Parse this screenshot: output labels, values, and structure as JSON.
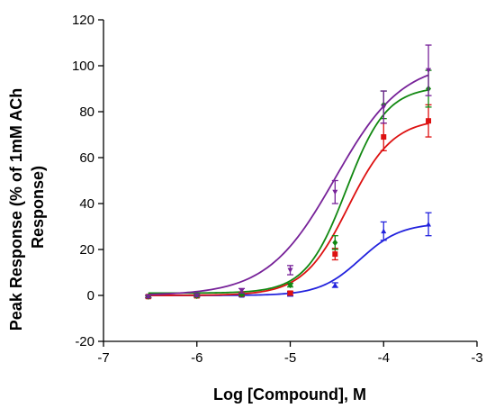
{
  "chart_data": {
    "type": "scatter",
    "title": "",
    "xlabel": "Log [Compound], M",
    "ylabel_lines": [
      "Peak Response (% of  1mM ACh",
      "Response)"
    ],
    "xlim": [
      -7,
      -3
    ],
    "ylim": [
      -20,
      120
    ],
    "x_ticks": [
      -7,
      -6,
      -5,
      -4,
      -3
    ],
    "x_tick_labels": [
      "-7",
      "-6",
      "-5",
      "-4",
      "-3"
    ],
    "y_ticks": [
      -20,
      0,
      20,
      40,
      60,
      80,
      100,
      120
    ],
    "y_tick_labels": [
      "-20",
      "0",
      "20",
      "40",
      "60",
      "80",
      "100",
      "120"
    ],
    "grid": false,
    "legend": "none",
    "series": [
      {
        "color": "#2222dd",
        "marker": "triangle-up",
        "x": [
          -6.52,
          -6.0,
          -5.52,
          -5.0,
          -4.52,
          -4.0,
          -3.52
        ],
        "y": [
          -0.5,
          -0.2,
          0.0,
          0.5,
          4.5,
          28,
          31
        ],
        "err": [
          0.5,
          0.5,
          0.5,
          0.8,
          1.0,
          4,
          5
        ],
        "fit": {
          "bottom": 0.0,
          "top": 31.5,
          "logEC50": -4.25,
          "hill": 2.0
        }
      },
      {
        "color": "#dd1111",
        "marker": "square",
        "x": [
          -6.52,
          -6.0,
          -5.52,
          -5.0,
          -4.52,
          -4.0,
          -3.52
        ],
        "y": [
          -0.5,
          -0.2,
          0.5,
          1.0,
          18,
          69,
          76
        ],
        "err": [
          0.5,
          0.5,
          0.5,
          0.8,
          2.5,
          6,
          7
        ],
        "fit": {
          "bottom": 0.0,
          "top": 77.0,
          "logEC50": -4.38,
          "hill": 1.8
        }
      },
      {
        "color": "#118811",
        "marker": "diamond",
        "x": [
          -6.52,
          -6.0,
          -5.52,
          -5.0,
          -4.52,
          -4.0,
          -3.52
        ],
        "y": [
          -0.5,
          -0.2,
          0.5,
          4.5,
          23,
          83,
          90
        ],
        "err": [
          0.5,
          0.5,
          0.5,
          0.8,
          3,
          6,
          8
        ],
        "fit": {
          "bottom": 1.0,
          "top": 91.0,
          "logEC50": -4.4,
          "hill": 2.0
        }
      },
      {
        "color": "#772299",
        "marker": "triangle-down",
        "x": [
          -6.52,
          -6.0,
          -5.52,
          -5.0,
          -4.52,
          -4.0,
          -3.52
        ],
        "y": [
          -0.5,
          0.0,
          2.0,
          11,
          45,
          82,
          98
        ],
        "err": [
          0.5,
          0.5,
          1.0,
          2,
          5,
          7,
          11
        ],
        "fit": {
          "bottom": 0.0,
          "top": 102.0,
          "logEC50": -4.52,
          "hill": 1.2
        }
      }
    ]
  }
}
